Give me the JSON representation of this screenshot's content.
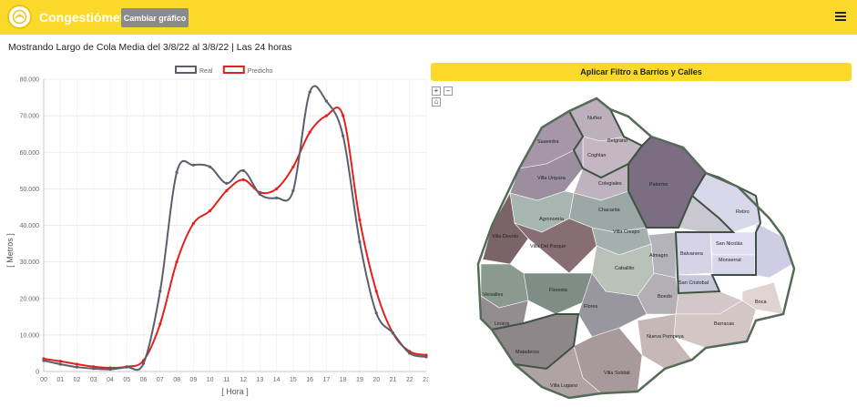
{
  "header": {
    "brand": "Congestiómetro",
    "change_chart_label": "Cambiar gráfico",
    "logo_icon": "city-seal-icon",
    "menu_icon": "hamburger-menu-icon",
    "accent": "#fbd92b"
  },
  "subtitle": "Mostrando Largo de Cola Media del 3/8/22 al 3/8/22 | Las 24 horas",
  "chart_data": {
    "type": "line",
    "title": "",
    "xlabel": "[ Hora ]",
    "ylabel": "[ Metros ]",
    "ylim": [
      0,
      80000
    ],
    "yticks": [
      "0",
      "10.000",
      "20.000",
      "30.000",
      "40.000",
      "50.000",
      "60.000",
      "70.000",
      "80.000"
    ],
    "x": [
      "00",
      "01",
      "02",
      "03",
      "04",
      "05",
      "06",
      "07",
      "08",
      "09",
      "10",
      "11",
      "12",
      "13",
      "14",
      "15",
      "16",
      "17",
      "18",
      "19",
      "20",
      "21",
      "22",
      "23"
    ],
    "legend_position": "top-center",
    "grid": true,
    "series": [
      {
        "name": "Real",
        "color": "#5a5f6b",
        "values": [
          3000,
          2000,
          1200,
          800,
          600,
          1200,
          2200,
          22000,
          54500,
          56500,
          56000,
          51500,
          55000,
          48500,
          47500,
          49500,
          76500,
          74000,
          64500,
          35500,
          16000,
          10500,
          5000,
          4000
        ]
      },
      {
        "name": "Predicho",
        "color": "#e3201b",
        "values": [
          3500,
          2800,
          2000,
          1300,
          1000,
          1300,
          3000,
          13000,
          30000,
          40500,
          44000,
          49500,
          52500,
          49000,
          50000,
          56000,
          65500,
          70000,
          70000,
          41500,
          22000,
          10500,
          5500,
          4500
        ]
      }
    ]
  },
  "filter_button_label": "Aplicar Filtro a Barrios y Calles",
  "map": {
    "zoom_in": "+",
    "zoom_out": "–",
    "reset": "⌂",
    "barrios": {
      "nunez": "Nuñez",
      "saavedra": "Saavedra",
      "belgrano": "Belgrano",
      "coghlan": "Coghlan",
      "villa_urquiza": "Villa Urquiza",
      "palermo": "Palermo",
      "colegiales": "Colegiales",
      "chacarita": "Chacarita",
      "agronomia": "Agronomía",
      "villa_crespo": "Villa Crespo",
      "retiro": "Retiro",
      "villa_devoto": "Villa Devoto",
      "villa_del_parque": "Villa Del Parque",
      "almagro": "Almagro",
      "balvanera": "Balvanera",
      "san_nicolas": "San Nicolás",
      "monserrat": "Monserrat",
      "caballito": "Caballito",
      "san_cristobal": "San Cristobal",
      "versalles": "Versalles",
      "floresta": "Floresta",
      "boedo": "Boedo",
      "boca": "Boca",
      "flores": "Flores",
      "barracas": "Barracas",
      "liniers": "Liniers",
      "nueva_pompeya": "Nueva Pompeya",
      "mataderos": "Mataderos",
      "villa_soldati": "Villa Soldati",
      "villa_lugano": "Villa Lugano"
    }
  }
}
